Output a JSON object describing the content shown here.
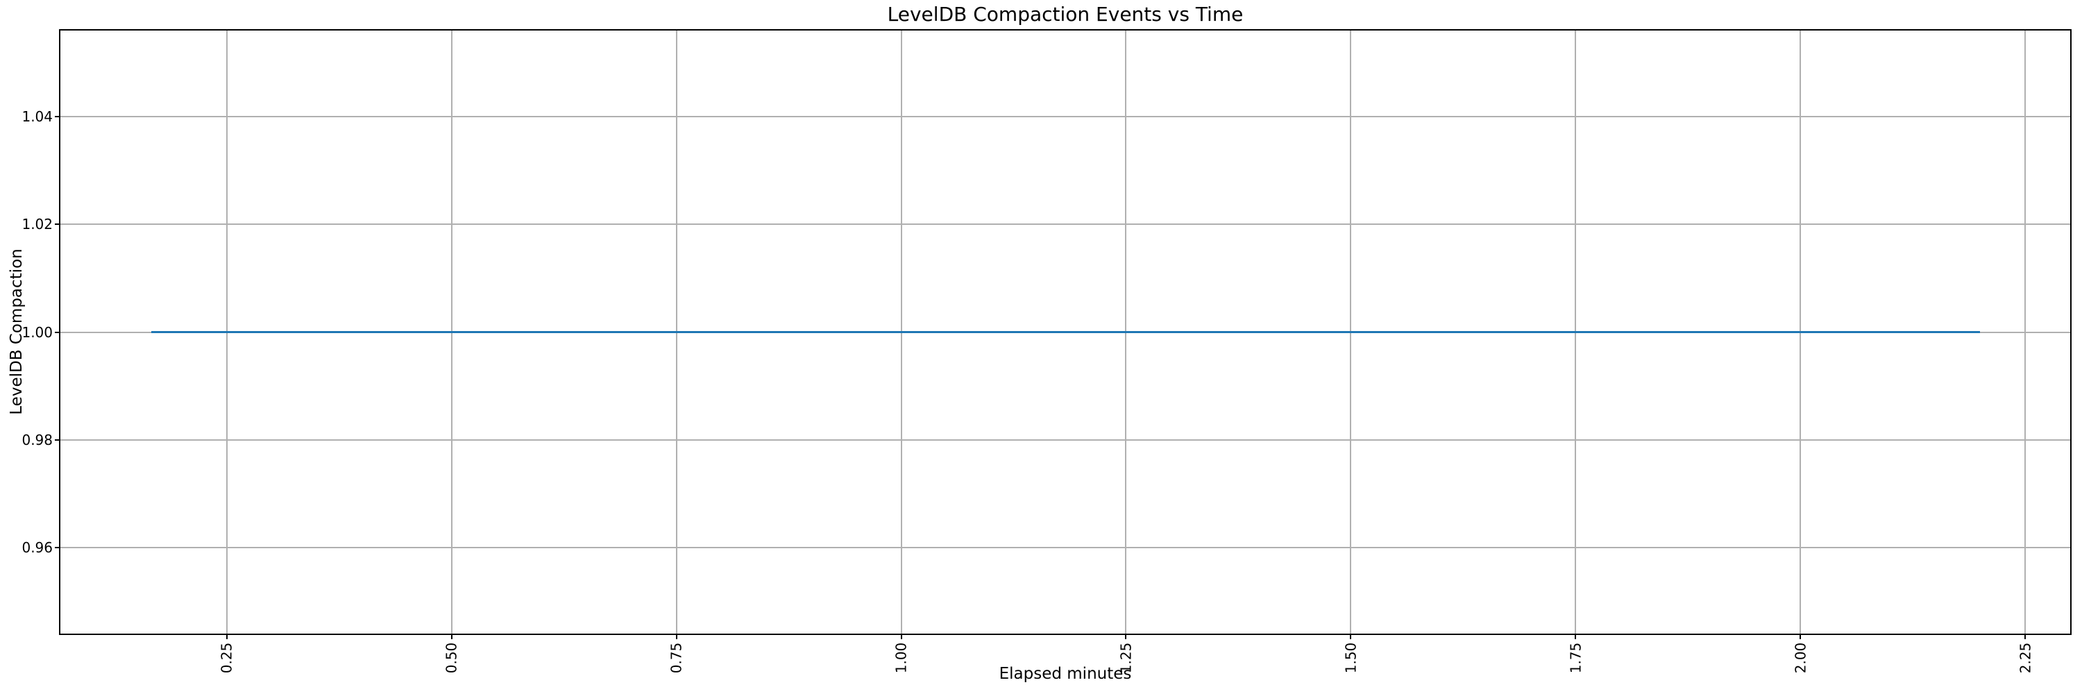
{
  "chart_data": {
    "type": "line",
    "title": "LevelDB Compaction Events vs Time",
    "xlabel": "Elapsed minutes",
    "ylabel": "LevelDB Compaction",
    "xlim": [
      0.065,
      2.3
    ],
    "ylim": [
      0.944,
      1.056
    ],
    "xticks": [
      0.25,
      0.5,
      0.75,
      1.0,
      1.25,
      1.5,
      1.75,
      2.0,
      2.25
    ],
    "xtick_labels": [
      "0.25",
      "0.50",
      "0.75",
      "1.00",
      "1.25",
      "1.50",
      "1.75",
      "2.00",
      "2.25"
    ],
    "yticks": [
      0.96,
      0.98,
      1.0,
      1.02,
      1.04
    ],
    "ytick_labels": [
      "0.96",
      "0.98",
      "1.00",
      "1.02",
      "1.04"
    ],
    "xtick_label_rotation": 90,
    "grid": true,
    "legend": "none",
    "series": [
      {
        "name": "LevelDB Compaction",
        "color": "#1f77b4",
        "x": [
          0.166,
          2.2
        ],
        "y": [
          1.0,
          1.0
        ],
        "note": "constant horizontal line at y = 1.00 spanning x ~0.17 to ~2.20 minutes"
      }
    ],
    "colors": {
      "background": "#ffffff",
      "grid": "#b0b0b0",
      "spine": "#000000",
      "text": "#000000",
      "line": "#1f77b4"
    }
  }
}
